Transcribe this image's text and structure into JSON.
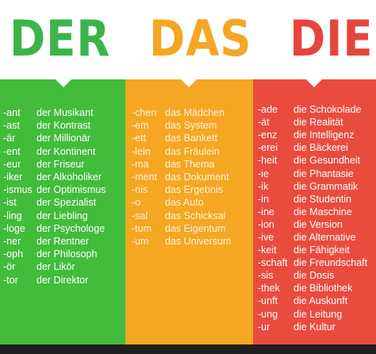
{
  "titles": {
    "der": "DER",
    "das": "DAS",
    "die": "DIE"
  },
  "colors": {
    "der": "#42bc3a",
    "das": "#f5a623",
    "die": "#ea4b3f"
  },
  "der": [
    {
      "suffix": "-ant",
      "word": "der Musikant"
    },
    {
      "suffix": "-ast",
      "word": "der Kontrast"
    },
    {
      "suffix": "-är",
      "word": "der Millionär"
    },
    {
      "suffix": "-ent",
      "word": "der Kontinent"
    },
    {
      "suffix": "-eur",
      "word": "der Friseur"
    },
    {
      "suffix": "-iker",
      "word": "der Alkoholiker"
    },
    {
      "suffix": "-ismus",
      "word": "der Optimismus"
    },
    {
      "suffix": "-ist",
      "word": "der Spezialist"
    },
    {
      "suffix": "-ling",
      "word": "der Liebling"
    },
    {
      "suffix": "-loge",
      "word": "der Psychologe"
    },
    {
      "suffix": "-ner",
      "word": "der Rentner"
    },
    {
      "suffix": "-oph",
      "word": "der Philosoph"
    },
    {
      "suffix": "-ör",
      "word": "der Likör"
    },
    {
      "suffix": "-tor",
      "word": "der Direktor"
    }
  ],
  "das": [
    {
      "suffix": "-chen",
      "word": "das Mädchen"
    },
    {
      "suffix": "-em",
      "word": "das System"
    },
    {
      "suffix": "-ett",
      "word": "das Bankett"
    },
    {
      "suffix": "-lein",
      "word": "das Fräulein"
    },
    {
      "suffix": "-ma",
      "word": "das Thema"
    },
    {
      "suffix": "-ment",
      "word": "das Dokument"
    },
    {
      "suffix": "-nis",
      "word": "das Ergebnis"
    },
    {
      "suffix": "-o",
      "word": "das Auto"
    },
    {
      "suffix": "-sal",
      "word": "das Schicksal"
    },
    {
      "suffix": "-tum",
      "word": "das Eigentum"
    },
    {
      "suffix": "-um",
      "word": "das Universum"
    }
  ],
  "die": [
    {
      "suffix": "-ade",
      "word": "die Schokolade"
    },
    {
      "suffix": "-ät",
      "word": "die Realität"
    },
    {
      "suffix": "-enz",
      "word": "die Intelligenz"
    },
    {
      "suffix": "-erei",
      "word": "die Bäckerei"
    },
    {
      "suffix": "-heit",
      "word": "die Gesundheit"
    },
    {
      "suffix": "-ie",
      "word": "die Phantasie"
    },
    {
      "suffix": "-ik",
      "word": "die Grammatik"
    },
    {
      "suffix": "-in",
      "word": "die Studentin"
    },
    {
      "suffix": "-ine",
      "word": "die Maschine"
    },
    {
      "suffix": "-ion",
      "word": "die Version"
    },
    {
      "suffix": "-ive",
      "word": "die Alternative"
    },
    {
      "suffix": "-keit",
      "word": "die Fähigkeit"
    },
    {
      "suffix": "-schaft",
      "word": "die Freundschaft"
    },
    {
      "suffix": "-sis",
      "word": "die Dosis"
    },
    {
      "suffix": "-thek",
      "word": "die Bibliothek"
    },
    {
      "suffix": "-unft",
      "word": "die Auskunft"
    },
    {
      "suffix": "-ung",
      "word": "die Leitung"
    },
    {
      "suffix": "-ur",
      "word": "die Kultur"
    }
  ]
}
